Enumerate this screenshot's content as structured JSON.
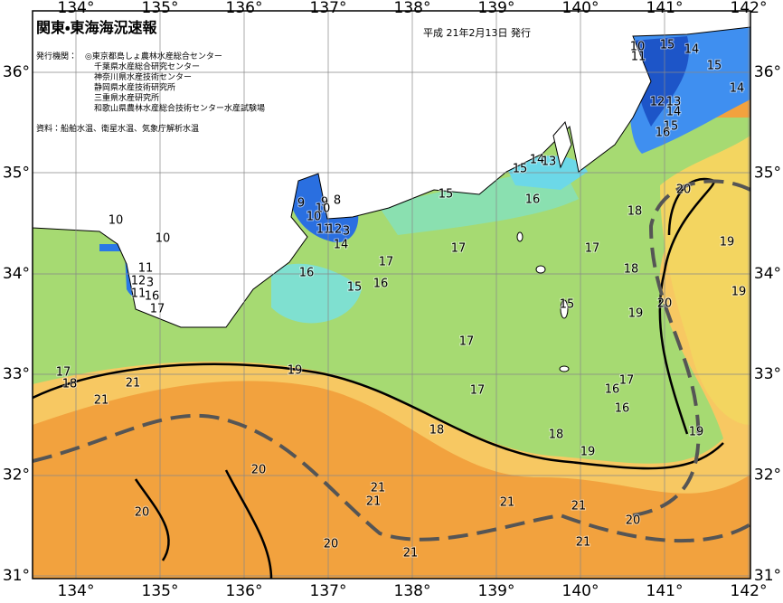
{
  "header": {
    "title": "関東・東海海況速報",
    "date": "平成 21年2月13日 発行"
  },
  "publishers": {
    "label": "発行機関：",
    "items": [
      "◎東京都島しょ農林水産総合センター",
      "千葉県水産総合研究センター",
      "神奈川県水産技術センター",
      "静岡県水産技術研究所",
      "三重県水産研究所",
      "和歌山県農林水産総合技術センター水産試験場"
    ]
  },
  "source": "資料：船舶水温、衛星水温、気象庁解析水温",
  "lon_labels": [
    "134°",
    "135°",
    "136°",
    "137°",
    "138°",
    "139°",
    "140°",
    "141°",
    "142°"
  ],
  "lat_labels": [
    "36°",
    "35°",
    "34°",
    "33°",
    "32°",
    "31°"
  ],
  "contour_labels": [
    10,
    11,
    15,
    14,
    15,
    14,
    12,
    13,
    14,
    15,
    16,
    14,
    13,
    15,
    15,
    16,
    18,
    20,
    19,
    17,
    18,
    19,
    20,
    19,
    15,
    10,
    10,
    11,
    12,
    3,
    11,
    16,
    17,
    9,
    9,
    8,
    10,
    10,
    11,
    12,
    3,
    14,
    16,
    17,
    16,
    15,
    17,
    17,
    19,
    17,
    18,
    21,
    21,
    17,
    17,
    16,
    16,
    18,
    18,
    19,
    19,
    20,
    21,
    21,
    21,
    21,
    20,
    20,
    20,
    21,
    21
  ]
}
